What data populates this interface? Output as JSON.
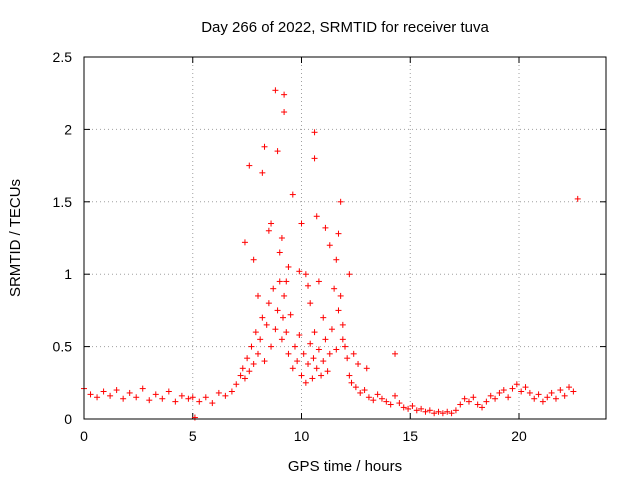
{
  "chart_data": {
    "type": "scatter",
    "title": "Day 266 of 2022, SRMTID for receiver tuva",
    "xlabel": "GPS time / hours",
    "ylabel": "SRMTID / TECUs",
    "xlim": [
      0,
      24
    ],
    "ylim": [
      0,
      2.5
    ],
    "xticks": [
      0,
      5,
      10,
      15,
      20
    ],
    "xtick_labels": [
      "0",
      "5",
      "10",
      "15",
      "20"
    ],
    "yticks": [
      0,
      0.5,
      1,
      1.5,
      2,
      2.5
    ],
    "ytick_labels": [
      "0",
      "0.5",
      "1",
      "1.5",
      "2",
      "2.5"
    ],
    "grid": true,
    "marker": "+",
    "series": [
      {
        "name": "SRMTID",
        "color": "#ff0000",
        "x": [
          0.0,
          0.3,
          0.6,
          0.9,
          1.2,
          1.5,
          1.8,
          2.1,
          2.4,
          2.7,
          3.0,
          3.3,
          3.6,
          3.9,
          4.2,
          4.5,
          4.8,
          5.0,
          5.1,
          5.3,
          5.6,
          5.9,
          6.2,
          6.5,
          6.8,
          7.0,
          7.2,
          7.3,
          7.4,
          7.5,
          7.6,
          7.7,
          7.8,
          7.9,
          8.0,
          8.1,
          8.2,
          8.3,
          8.4,
          8.5,
          8.6,
          8.7,
          8.8,
          8.9,
          9.0,
          9.1,
          9.15,
          9.2,
          9.3,
          9.4,
          9.5,
          9.6,
          9.7,
          9.8,
          9.9,
          10.0,
          10.1,
          10.2,
          10.3,
          10.4,
          10.5,
          10.55,
          10.6,
          10.7,
          10.8,
          10.9,
          11.0,
          11.1,
          11.2,
          11.3,
          11.4,
          11.5,
          11.6,
          11.7,
          11.8,
          11.9,
          12.0,
          12.1,
          12.2,
          12.3,
          12.5,
          12.7,
          12.9,
          13.1,
          13.3,
          13.5,
          13.7,
          13.9,
          14.1,
          14.3,
          14.5,
          14.7,
          14.9,
          15.1,
          15.3,
          15.5,
          15.7,
          15.9,
          16.1,
          16.3,
          16.5,
          16.7,
          16.9,
          17.1,
          17.3,
          17.5,
          17.7,
          17.9,
          18.1,
          18.3,
          18.5,
          18.7,
          18.9,
          19.1,
          19.3,
          19.5,
          19.7,
          19.9,
          20.1,
          20.3,
          20.5,
          20.7,
          20.9,
          21.1,
          21.3,
          21.5,
          21.7,
          21.9,
          22.1,
          22.3,
          22.5,
          22.7,
          7.6,
          8.2,
          8.8,
          9.2,
          9.2,
          10.6,
          10.6,
          10.7,
          11.8,
          8.9,
          9.1,
          7.8,
          8.5,
          9.4,
          9.9,
          10.2,
          10.8,
          11.3,
          11.9,
          12.2,
          8.0,
          8.6,
          9.0,
          9.6,
          10.0,
          10.4,
          11.0,
          11.6,
          12.4,
          7.4,
          8.3,
          9.3,
          10.3,
          11.1,
          11.7,
          12.6,
          13.0,
          14.3
        ],
        "y": [
          0.21,
          0.17,
          0.15,
          0.19,
          0.16,
          0.2,
          0.14,
          0.18,
          0.15,
          0.21,
          0.13,
          0.17,
          0.14,
          0.19,
          0.12,
          0.16,
          0.14,
          0.15,
          0.01,
          0.12,
          0.15,
          0.11,
          0.18,
          0.16,
          0.19,
          0.24,
          0.3,
          0.35,
          0.28,
          0.42,
          0.33,
          0.5,
          0.38,
          0.6,
          0.45,
          0.55,
          0.7,
          0.4,
          0.65,
          0.8,
          0.5,
          0.9,
          0.62,
          0.75,
          0.95,
          0.55,
          0.7,
          0.85,
          0.6,
          0.45,
          0.72,
          0.35,
          0.5,
          0.4,
          0.58,
          0.3,
          0.45,
          0.25,
          0.38,
          0.52,
          0.28,
          0.42,
          0.6,
          0.35,
          0.48,
          0.3,
          0.4,
          0.55,
          0.33,
          0.45,
          0.62,
          0.9,
          1.1,
          1.28,
          0.85,
          0.65,
          0.5,
          0.42,
          0.3,
          0.25,
          0.22,
          0.18,
          0.2,
          0.15,
          0.13,
          0.17,
          0.14,
          0.12,
          0.1,
          0.16,
          0.11,
          0.08,
          0.07,
          0.09,
          0.06,
          0.07,
          0.05,
          0.06,
          0.04,
          0.05,
          0.04,
          0.05,
          0.04,
          0.06,
          0.1,
          0.14,
          0.12,
          0.15,
          0.1,
          0.08,
          0.12,
          0.16,
          0.14,
          0.18,
          0.2,
          0.15,
          0.21,
          0.24,
          0.19,
          0.22,
          0.18,
          0.14,
          0.17,
          0.12,
          0.15,
          0.18,
          0.14,
          0.2,
          0.16,
          0.22,
          0.19,
          1.52,
          1.75,
          1.7,
          2.27,
          2.24,
          2.12,
          1.98,
          1.8,
          1.4,
          1.5,
          1.85,
          1.25,
          1.1,
          1.3,
          1.05,
          1.02,
          1.0,
          0.95,
          1.2,
          0.55,
          1.0,
          0.85,
          1.35,
          1.15,
          1.55,
          1.35,
          0.8,
          0.7,
          0.48,
          0.45,
          1.22,
          1.88,
          0.95,
          0.92,
          1.32,
          0.75,
          0.38,
          0.35,
          0.45
        ]
      }
    ]
  }
}
